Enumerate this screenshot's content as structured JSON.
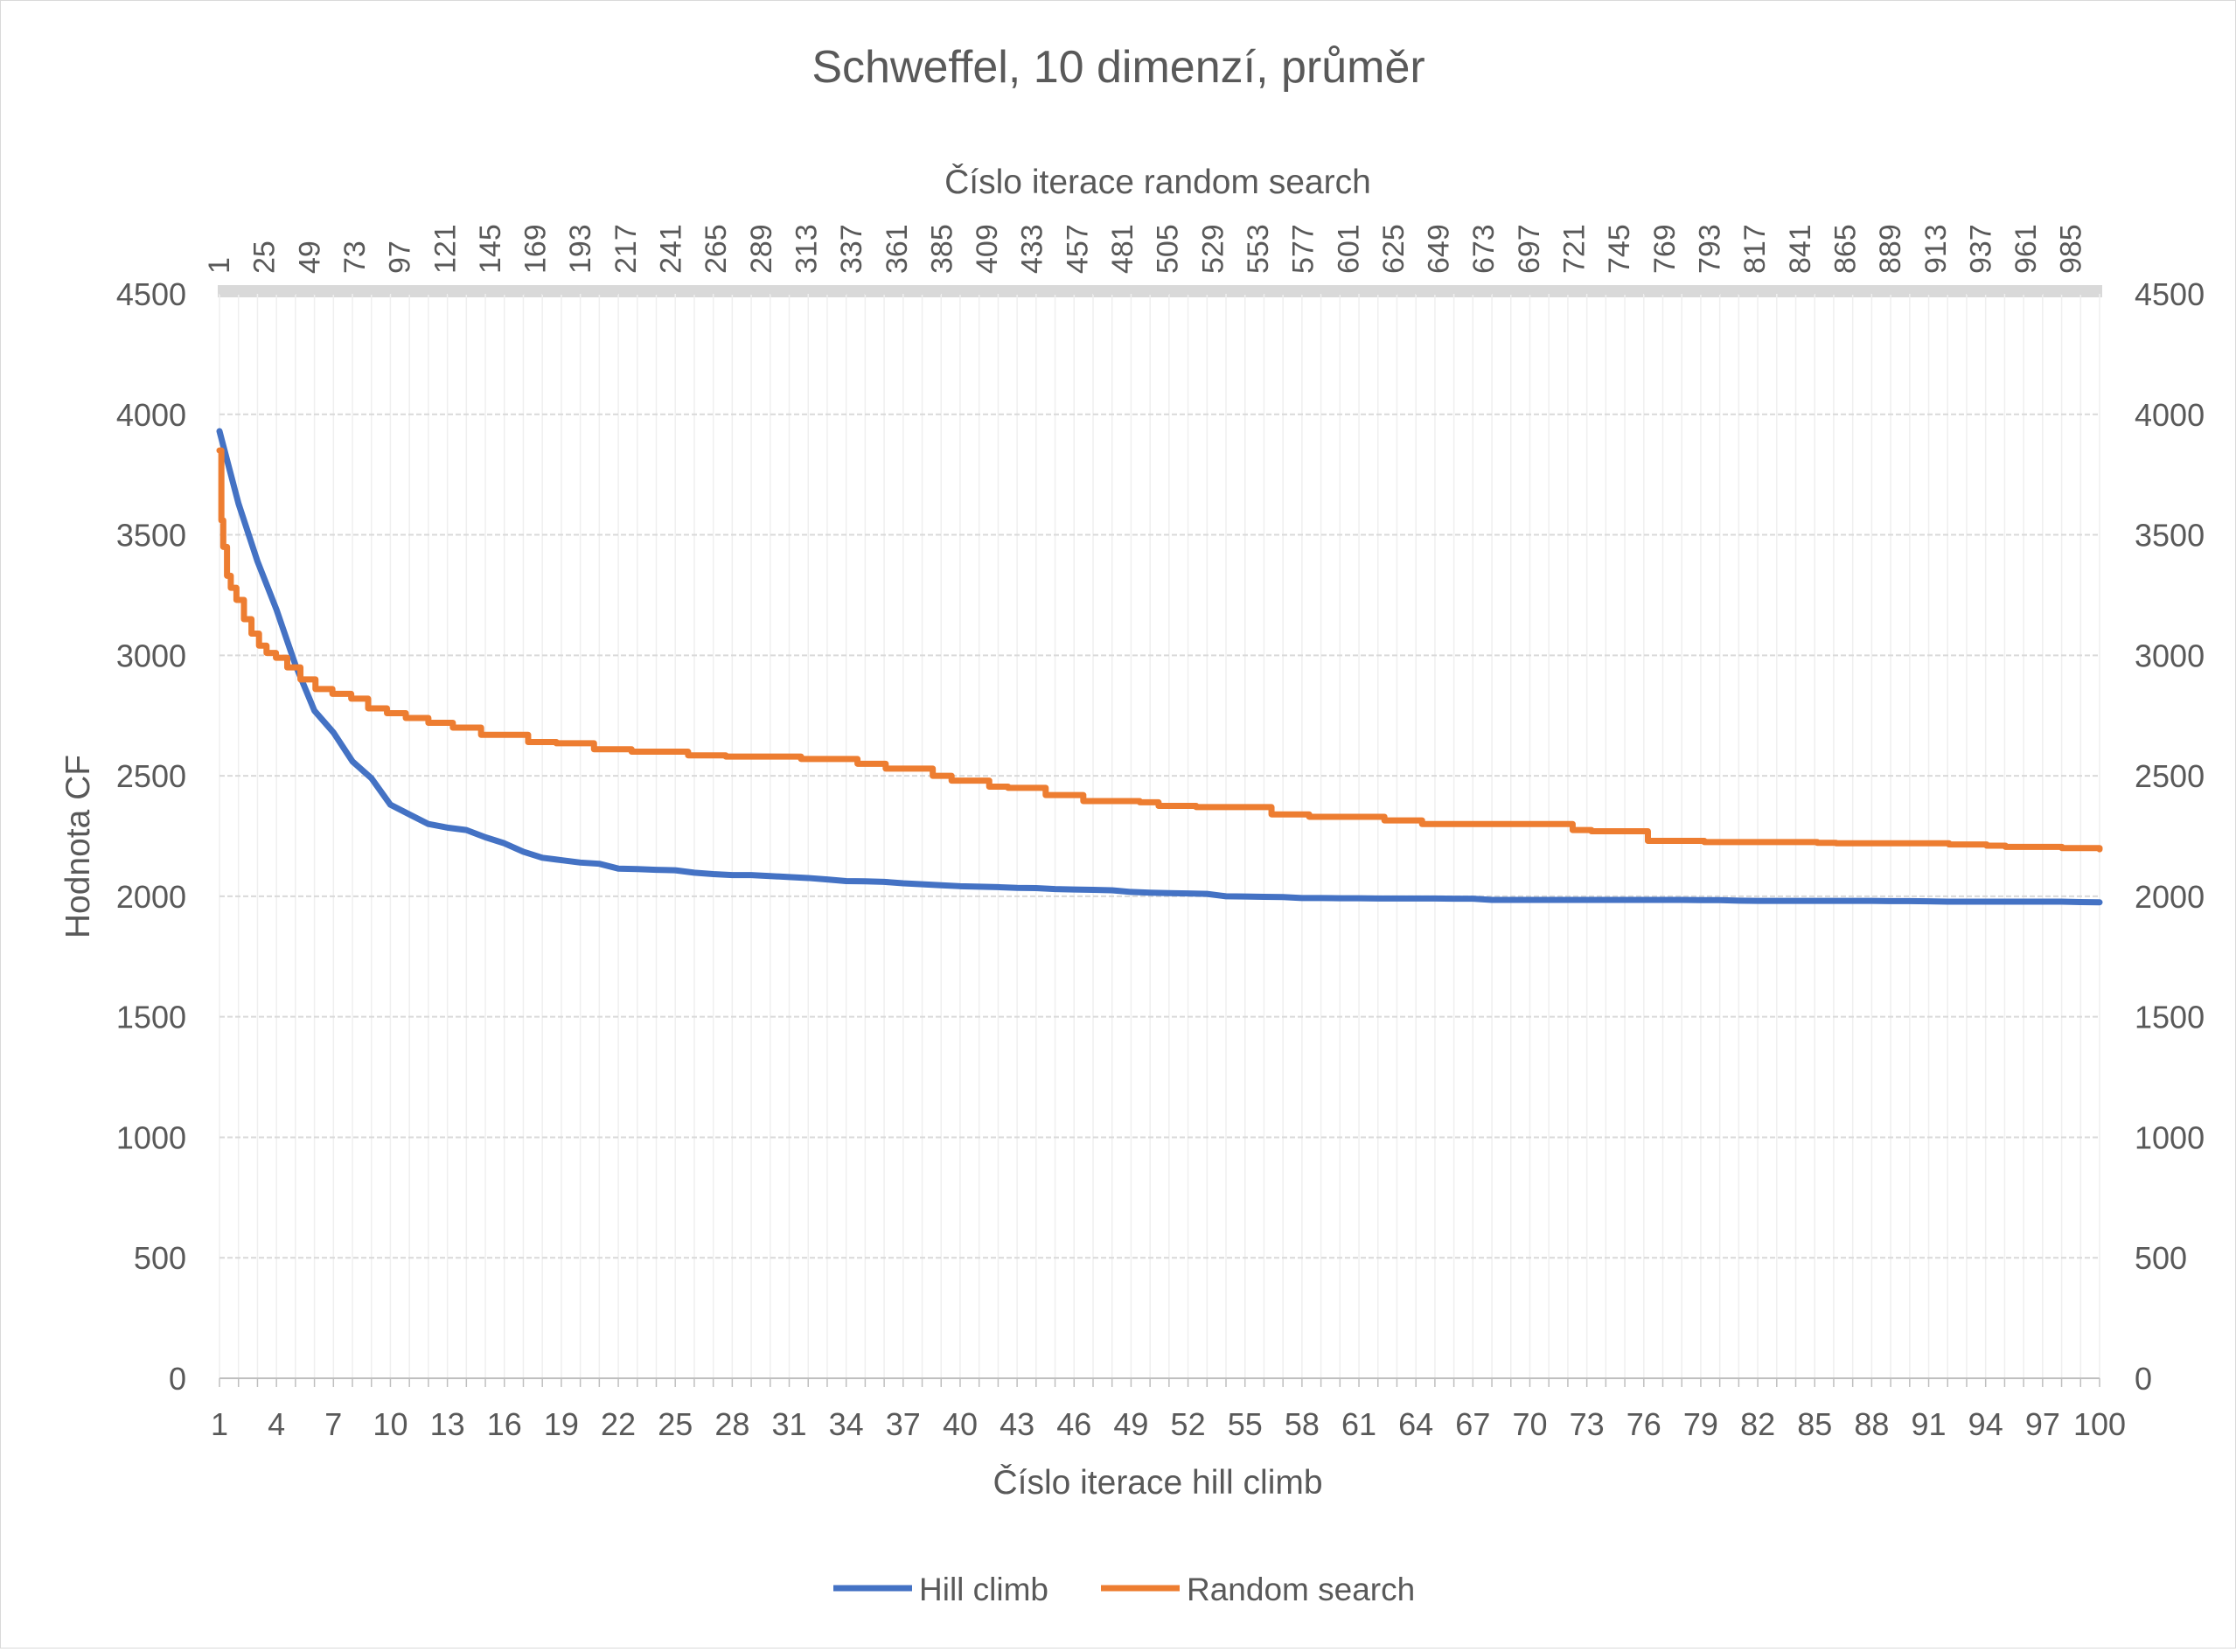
{
  "chart_data": {
    "type": "line",
    "title": "Schweffel, 10 dimenzí, průměr",
    "xlabel": "Číslo iterace hill climb",
    "x2label": "Číslo iterace random search",
    "ylabel": "Hodnota CF",
    "ylim": [
      0,
      4500
    ],
    "yticks": [
      0,
      500,
      1000,
      1500,
      2000,
      2500,
      3000,
      3500,
      4000,
      4500
    ],
    "secondary_yticks": [
      0,
      500,
      1000,
      1500,
      2000,
      2500,
      3000,
      3500,
      4000,
      4500
    ],
    "x_tick_labels": [
      "1",
      "4",
      "7",
      "10",
      "13",
      "16",
      "19",
      "22",
      "25",
      "28",
      "31",
      "34",
      "37",
      "40",
      "43",
      "46",
      "49",
      "52",
      "55",
      "58",
      "61",
      "64",
      "67",
      "70",
      "73",
      "76",
      "79",
      "82",
      "85",
      "88",
      "91",
      "94",
      "97",
      "100"
    ],
    "x2_tick_labels": [
      "1",
      "25",
      "49",
      "73",
      "97",
      "121",
      "145",
      "169",
      "193",
      "217",
      "241",
      "265",
      "289",
      "313",
      "337",
      "361",
      "385",
      "409",
      "433",
      "457",
      "481",
      "505",
      "529",
      "553",
      "577",
      "601",
      "625",
      "649",
      "673",
      "697",
      "721",
      "745",
      "769",
      "793",
      "817",
      "841",
      "865",
      "889",
      "913",
      "937",
      "961",
      "985"
    ],
    "x_range": [
      1,
      100
    ],
    "x2_range": [
      1,
      1000
    ],
    "grid": true,
    "legend_position": "bottom",
    "series": [
      {
        "name": "Hill climb",
        "color": "#4472C4",
        "axis": "primary",
        "x": [
          1,
          2,
          3,
          4,
          5,
          6,
          7,
          8,
          9,
          10,
          11,
          12,
          13,
          14,
          15,
          16,
          17,
          18,
          19,
          20,
          21,
          22,
          23,
          24,
          25,
          26,
          27,
          28,
          29,
          30,
          31,
          32,
          33,
          34,
          35,
          36,
          37,
          38,
          39,
          40,
          41,
          42,
          43,
          44,
          45,
          46,
          47,
          48,
          49,
          50,
          51,
          52,
          53,
          54,
          55,
          56,
          57,
          58,
          59,
          60,
          61,
          62,
          63,
          64,
          65,
          66,
          67,
          68,
          69,
          70,
          71,
          72,
          73,
          74,
          75,
          76,
          77,
          78,
          79,
          80,
          81,
          82,
          83,
          84,
          85,
          86,
          87,
          88,
          89,
          90,
          91,
          92,
          93,
          94,
          95,
          96,
          97,
          98,
          99,
          100
        ],
        "values": [
          3930,
          3630,
          3390,
          3190,
          2960,
          2770,
          2680,
          2560,
          2490,
          2380,
          2340,
          2300,
          2285,
          2275,
          2245,
          2220,
          2185,
          2160,
          2150,
          2140,
          2135,
          2115,
          2113,
          2110,
          2108,
          2098,
          2092,
          2088,
          2088,
          2084,
          2080,
          2076,
          2070,
          2063,
          2062,
          2060,
          2054,
          2050,
          2046,
          2042,
          2040,
          2038,
          2035,
          2034,
          2030,
          2028,
          2027,
          2025,
          2018,
          2015,
          2013,
          2012,
          2010,
          2000,
          1999,
          1998,
          1997,
          1993,
          1993,
          1992,
          1992,
          1991,
          1991,
          1991,
          1991,
          1990,
          1990,
          1985,
          1985,
          1985,
          1985,
          1985,
          1985,
          1985,
          1985,
          1985,
          1985,
          1985,
          1984,
          1984,
          1982,
          1981,
          1981,
          1981,
          1981,
          1981,
          1981,
          1981,
          1980,
          1980,
          1979,
          1978,
          1978,
          1978,
          1978,
          1978,
          1978,
          1978,
          1976,
          1975
        ]
      },
      {
        "name": "Random search",
        "color": "#ED7D31",
        "axis": "secondary",
        "x": [
          1,
          2,
          3,
          5,
          7,
          10,
          14,
          18,
          22,
          26,
          31,
          37,
          44,
          52,
          61,
          71,
          80,
          90,
          100,
          112,
          125,
          140,
          150,
          165,
          180,
          200,
          220,
          250,
          270,
          290,
          310,
          340,
          355,
          380,
          390,
          410,
          420,
          435,
          440,
          460,
          490,
          500,
          520,
          560,
          580,
          620,
          640,
          670,
          680,
          720,
          730,
          760,
          790,
          850,
          860,
          900,
          920,
          940,
          950,
          980,
          1000
        ],
        "values": [
          3850,
          3560,
          3450,
          3330,
          3280,
          3230,
          3150,
          3090,
          3040,
          3010,
          2990,
          2950,
          2900,
          2860,
          2840,
          2820,
          2780,
          2760,
          2740,
          2720,
          2700,
          2670,
          2670,
          2640,
          2635,
          2610,
          2600,
          2585,
          2580,
          2580,
          2570,
          2550,
          2530,
          2500,
          2480,
          2455,
          2450,
          2450,
          2420,
          2395,
          2390,
          2375,
          2370,
          2340,
          2330,
          2315,
          2300,
          2300,
          2300,
          2275,
          2270,
          2230,
          2225,
          2222,
          2220,
          2220,
          2215,
          2210,
          2205,
          2200,
          2195
        ]
      }
    ]
  }
}
